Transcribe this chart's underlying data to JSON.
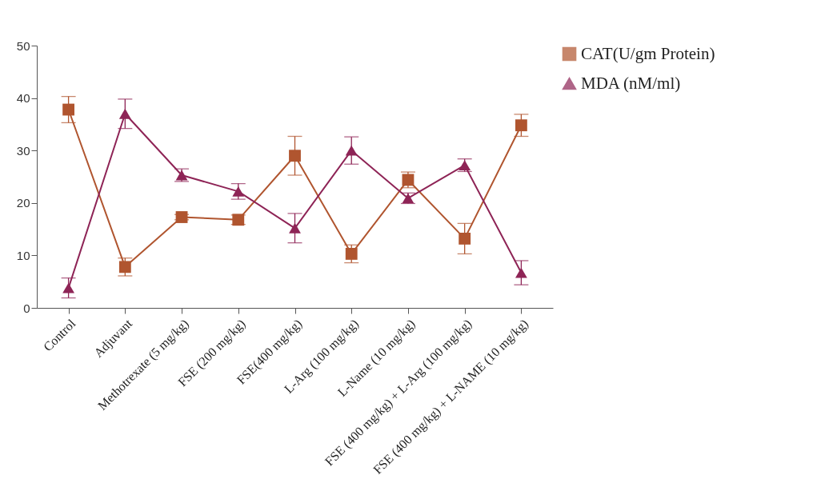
{
  "chart_data": {
    "type": "line",
    "categories": [
      "Control",
      "Adjuvant",
      "Methotrexate (5 mg/kg)",
      "FSE (200 mg/kg)",
      "FSE(400 mg/kg)",
      "L-Arg (100 mg/kg)",
      "L-Name (10 mg/kg)",
      "FSE (400 mg/kg) + L-Arg (100 mg/kg)",
      "FSE (400 mg/kg) + L-NAME (10 mg/kg)"
    ],
    "series": [
      {
        "name": "CAT(U/gm Protein)",
        "color": "#b0552f",
        "marker": "square",
        "values": [
          37.8,
          7.8,
          17.3,
          16.8,
          29,
          10.3,
          24.4,
          13.2,
          34.8
        ],
        "errors": [
          2.5,
          1.7,
          0.5,
          0.9,
          3.7,
          1.7,
          1.5,
          2.9,
          2.1
        ]
      },
      {
        "name": "MDA (nM/ml)",
        "color": "#8e2456",
        "marker": "triangle",
        "values": [
          3.8,
          37,
          25.3,
          22.2,
          15.2,
          30,
          20.9,
          27.2,
          6.7
        ],
        "errors": [
          1.9,
          2.8,
          1.2,
          1.5,
          2.8,
          2.6,
          1,
          1.2,
          2.3
        ]
      }
    ],
    "ylim": [
      0,
      50
    ],
    "yticks": [
      0,
      10,
      20,
      30,
      40,
      50
    ],
    "grid": false,
    "legend": "top right",
    "line_style": "solid"
  }
}
